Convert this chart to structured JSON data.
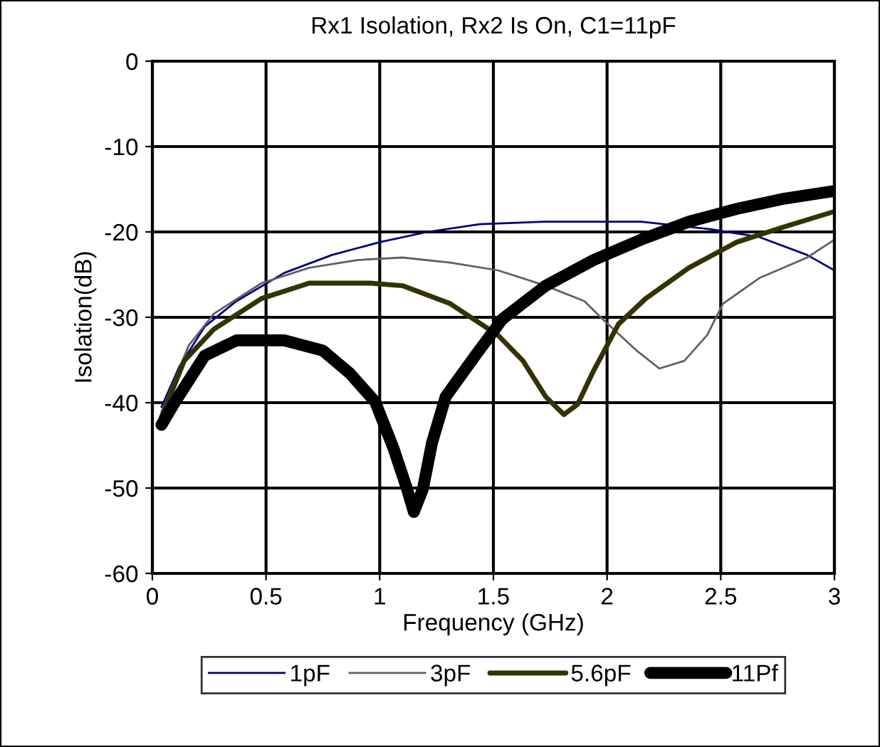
{
  "chart_data": {
    "type": "line",
    "title": "Rx1 Isolation, Rx2 Is On, C1=11pF",
    "xlabel": "Frequency (GHz)",
    "ylabel": "Isolation(dB)",
    "xlim": [
      0,
      3
    ],
    "xticks": [
      0,
      0.5,
      1,
      1.5,
      2,
      2.5,
      3
    ],
    "ylim": [
      -60,
      0
    ],
    "yticks": [
      -60,
      -50,
      -40,
      -30,
      -20,
      -10,
      0
    ],
    "grid": true,
    "legend": "bottom",
    "marker": "none",
    "line_style": "solid",
    "series": [
      {
        "name": "1pF",
        "color": "#000080",
        "x": [
          0.04,
          0.12,
          0.23,
          0.37,
          0.58,
          0.79,
          1.0,
          1.21,
          1.44,
          1.73,
          2.15,
          2.46,
          2.67,
          2.88,
          3.0
        ],
        "values": [
          -40.5,
          -35.7,
          -31.1,
          -28.1,
          -24.8,
          -22.7,
          -21.2,
          -20.0,
          -19.1,
          -18.8,
          -18.8,
          -19.7,
          -20.6,
          -22.7,
          -24.5
        ]
      },
      {
        "name": "3pF",
        "color": "#606060",
        "x": [
          0.04,
          0.16,
          0.27,
          0.48,
          0.69,
          0.9,
          1.1,
          1.31,
          1.52,
          1.73,
          1.9,
          1.98,
          2.13,
          2.23,
          2.34,
          2.44,
          2.51,
          2.67,
          2.88,
          3.0
        ],
        "values": [
          -41.1,
          -33.3,
          -29.6,
          -26.0,
          -24.2,
          -23.3,
          -23.0,
          -23.6,
          -24.5,
          -26.3,
          -28.1,
          -30.2,
          -33.9,
          -36.0,
          -35.1,
          -32.1,
          -28.4,
          -25.4,
          -23.0,
          -20.9
        ]
      },
      {
        "name": "5.6pF",
        "color": "#333300",
        "x": [
          0.04,
          0.14,
          0.27,
          0.48,
          0.69,
          0.96,
          1.1,
          1.31,
          1.52,
          1.63,
          1.73,
          1.81,
          1.87,
          1.94,
          2.05,
          2.17,
          2.36,
          2.57,
          2.78,
          3.0
        ],
        "values": [
          -41.7,
          -35.1,
          -31.4,
          -27.8,
          -26.0,
          -26.0,
          -26.3,
          -28.4,
          -32.1,
          -35.1,
          -39.3,
          -41.4,
          -40.2,
          -36.3,
          -30.8,
          -27.8,
          -24.2,
          -21.2,
          -19.4,
          -17.6
        ]
      },
      {
        "name": "11Pf",
        "color": "#000000",
        "x": [
          0.04,
          0.1,
          0.23,
          0.37,
          0.58,
          0.75,
          0.87,
          0.98,
          1.06,
          1.12,
          1.15,
          1.19,
          1.23,
          1.29,
          1.42,
          1.54,
          1.73,
          1.94,
          2.15,
          2.36,
          2.57,
          2.78,
          3.0
        ],
        "values": [
          -42.6,
          -39.9,
          -34.5,
          -32.7,
          -32.7,
          -33.9,
          -36.6,
          -39.9,
          -45.3,
          -50.1,
          -52.8,
          -50.1,
          -44.7,
          -39.3,
          -34.5,
          -30.2,
          -26.3,
          -23.3,
          -20.9,
          -18.8,
          -17.3,
          -16.1,
          -15.2
        ]
      }
    ]
  }
}
